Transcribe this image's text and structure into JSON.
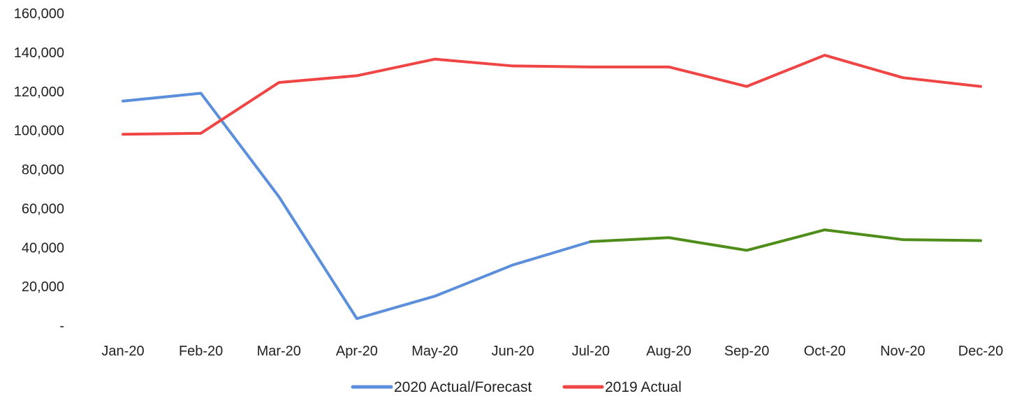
{
  "chart_data": {
    "type": "line",
    "title": "",
    "xlabel": "",
    "ylabel": "",
    "categories": [
      "Jan-20",
      "Feb-20",
      "Mar-20",
      "Apr-20",
      "May-20",
      "Jun-20",
      "Jul-20",
      "Aug-20",
      "Sep-20",
      "Oct-20",
      "Nov-20",
      "Dec-20"
    ],
    "ylim": [
      0,
      160000
    ],
    "y_ticks": [
      0,
      20000,
      40000,
      60000,
      80000,
      100000,
      120000,
      140000,
      160000
    ],
    "y_tick_labels": [
      "-",
      "20,000",
      "40,000",
      "60,000",
      "80,000",
      "100,000",
      "120,000",
      "140,000",
      "160,000"
    ],
    "grid": false,
    "legend_position": "bottom",
    "series": [
      {
        "name": "2020 Actual/Forecast",
        "color": "#5b8fdc",
        "forecast_color": "#4e8d1a",
        "forecast_start_index": 6,
        "values": [
          115000,
          119000,
          66000,
          3500,
          15000,
          31000,
          43000,
          45000,
          38500,
          49000,
          44000,
          43500
        ]
      },
      {
        "name": "2019 Actual",
        "color": "#f04545",
        "values": [
          98000,
          98500,
          124500,
          128000,
          136500,
          133000,
          132500,
          132500,
          122500,
          138500,
          127000,
          122500
        ]
      }
    ]
  }
}
